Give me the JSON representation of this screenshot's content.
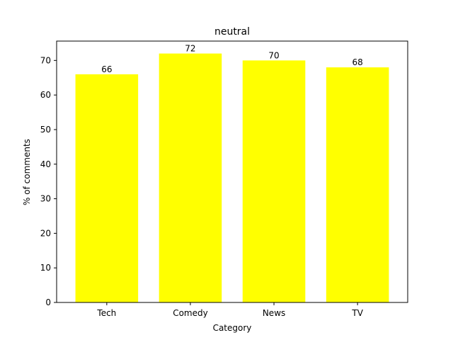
{
  "chart_data": {
    "type": "bar",
    "title": "neutral",
    "xlabel": "Category",
    "ylabel": "% of comments",
    "categories": [
      "Tech",
      "Comedy",
      "News",
      "TV"
    ],
    "values": [
      66,
      72,
      70,
      68
    ],
    "data_labels": [
      "66",
      "72",
      "70",
      "68"
    ],
    "ylim": [
      0,
      75.6
    ],
    "yticks": [
      0,
      10,
      20,
      30,
      40,
      50,
      60,
      70
    ],
    "grid": false,
    "legend": "none",
    "bar_color": "#ffff00"
  }
}
